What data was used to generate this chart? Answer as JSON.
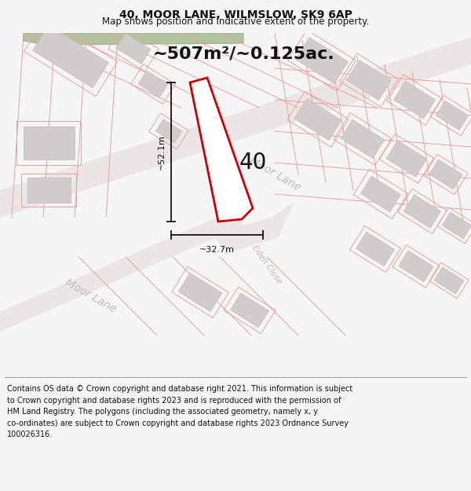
{
  "title_line1": "40, MOOR LANE, WILMSLOW, SK9 6AP",
  "title_line2": "Map shows position and indicative extent of the property.",
  "area_label": "~507m²/~0.125ac.",
  "number_label": "40",
  "dim_horizontal": "~32.7m",
  "dim_vertical": "~52.1m",
  "footer_text": "Contains OS data © Crown copyright and database right 2021. This information is subject to Crown copyright and database rights 2023 and is reproduced with the permission of\nHM Land Registry. The polygons (including the associated geometry, namely x, y\nco-ordinates) are subject to Crown copyright and database rights 2023 Ordnance Survey\n100026316.",
  "background_color": "#f5f5f5",
  "map_bg_color": "#f2eded",
  "plot_fill_color": "#ffffff",
  "plot_line_color": "#cc0000",
  "building_color": "#d0cccc",
  "parcel_line_color": "#e8a0a0",
  "road_color": "#e8e0e0",
  "green_color": "#b8c8a8",
  "dim_color": "#111111",
  "text_color": "#111111",
  "road_text_color": "#c8b8b8",
  "title_fontsize": 10,
  "subtitle_fontsize": 8.5,
  "area_fontsize": 16,
  "number_fontsize": 20,
  "dim_fontsize": 8,
  "footer_fontsize": 7
}
